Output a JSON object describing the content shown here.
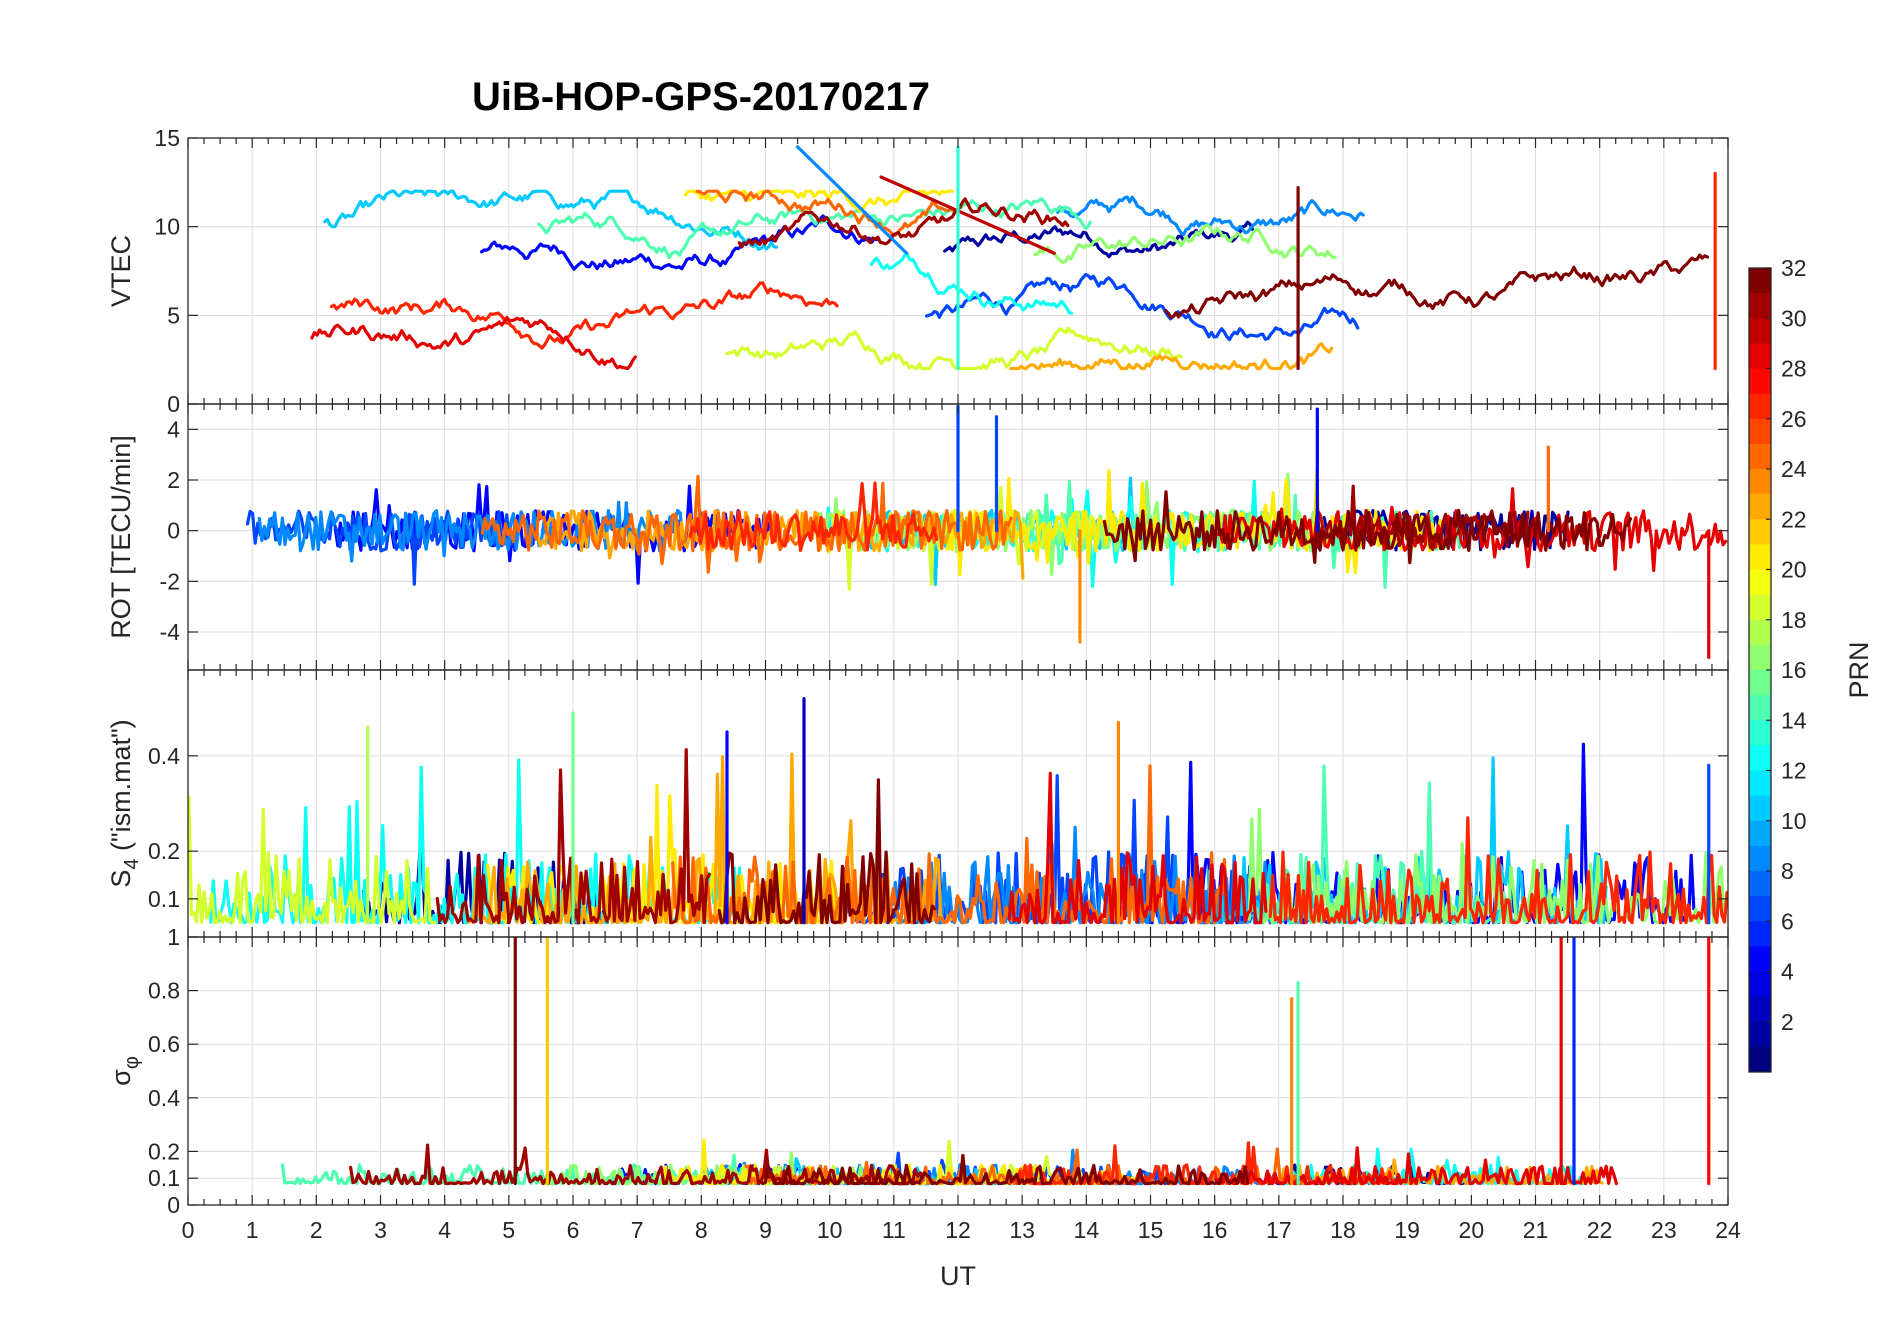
{
  "chart_data": {
    "title": "UiB-HOP-GPS-20170217",
    "type": "line",
    "xlabel": "UT",
    "xlim": [
      0,
      24
    ],
    "x_ticks": [
      0,
      1,
      2,
      3,
      4,
      5,
      6,
      7,
      8,
      9,
      10,
      11,
      12,
      13,
      14,
      15,
      16,
      17,
      18,
      19,
      20,
      21,
      22,
      23,
      24
    ],
    "x_tick_labels": [
      "0",
      "1",
      "2",
      "3",
      "4",
      "5",
      "6",
      "7",
      "8",
      "9",
      "10",
      "11",
      "12",
      "13",
      "14",
      "15",
      "16",
      "17",
      "18",
      "19",
      "20",
      "21",
      "22",
      "23",
      "24"
    ],
    "panels": [
      {
        "id": "vtec",
        "ylabel": "VTEC",
        "ylim": [
          0,
          15
        ],
        "y_ticks": [
          0,
          5,
          10,
          15
        ],
        "y_tick_labels": [
          "0",
          "5",
          "10",
          "15"
        ],
        "grid": true
      },
      {
        "id": "rot",
        "ylabel": "ROT [TECU/min]",
        "ylim": [
          -5.5,
          5
        ],
        "y_ticks": [
          -4,
          -2,
          0,
          2,
          4
        ],
        "y_tick_labels": [
          "-4",
          "-2",
          "0",
          "2",
          "4"
        ],
        "grid": true
      },
      {
        "id": "s4",
        "ylabel": "S4 (\"ism.mat\")",
        "ylabel_main": "S",
        "ylabel_sub": "4",
        "ylabel_rest": " (\"ism.mat\")",
        "ylim": [
          0.02,
          0.58
        ],
        "y_ticks": [
          0.1,
          0.2,
          0.4
        ],
        "y_tick_labels": [
          "0.1",
          "0.2",
          "0.4"
        ],
        "grid": true
      },
      {
        "id": "sigma_phi",
        "ylabel": "σφ",
        "ylabel_main": "σ",
        "ylabel_sub": "φ",
        "ylim": [
          0,
          1
        ],
        "y_ticks": [
          0,
          0.1,
          0.2,
          0.4,
          0.6,
          0.8,
          1
        ],
        "y_tick_labels": [
          "0",
          "0.1",
          "0.2",
          "0.4",
          "0.6",
          "0.8",
          "1"
        ],
        "grid": true
      }
    ],
    "colorbar": {
      "label": "PRN",
      "colormap": "jet",
      "range": [
        1,
        32
      ],
      "ticks": [
        2,
        4,
        6,
        8,
        10,
        12,
        14,
        16,
        18,
        20,
        22,
        24,
        26,
        28,
        30,
        32
      ],
      "tick_labels": [
        "2",
        "4",
        "6",
        "8",
        "10",
        "12",
        "14",
        "16",
        "18",
        "20",
        "22",
        "24",
        "26",
        "28",
        "30",
        "32"
      ]
    },
    "series_note_values": {
      "vtec_background_range": [
        2,
        12
      ],
      "rot_background_range": [
        -0.8,
        0.8
      ],
      "s4_background_range": [
        0.05,
        0.2
      ],
      "sigma_background_range": [
        0.08,
        0.15
      ]
    },
    "notable_events": [
      {
        "panel": "vtec",
        "prn": 9,
        "x_start": 9.5,
        "y_start": 14.5,
        "x_end": 11.2,
        "y_end": 8.5
      },
      {
        "panel": "vtec",
        "prn": 30,
        "x_start": 10.8,
        "y_start": 12.8,
        "x_end": 13.5,
        "y_end": 8.5
      },
      {
        "panel": "vtec",
        "prn": 14,
        "x": 12.0,
        "y": 14.5
      },
      {
        "panel": "vtec",
        "prn": 32,
        "x": 17.3,
        "y": 12.2
      },
      {
        "panel": "vtec",
        "prn": 27,
        "x": 23.8,
        "y": 13.0
      },
      {
        "panel": "rot",
        "prn": 7,
        "x": 12.0,
        "y": 4.9
      },
      {
        "panel": "rot",
        "prn": 7,
        "x": 12.6,
        "y": 4.5
      },
      {
        "panel": "rot",
        "prn": 5,
        "x": 17.6,
        "y": 4.8
      },
      {
        "panel": "rot",
        "prn": 24,
        "x": 13.9,
        "y": -4.4
      },
      {
        "panel": "rot",
        "prn": 29,
        "x": 23.7,
        "y": -5.0
      },
      {
        "panel": "rot",
        "prn": 25,
        "x": 21.2,
        "y": 3.3
      },
      {
        "panel": "s4",
        "prn": 3,
        "x": 9.6,
        "y": 0.52
      },
      {
        "panel": "s4",
        "prn": 16,
        "x": 6.0,
        "y": 0.49
      },
      {
        "panel": "s4",
        "prn": 18,
        "x": 2.8,
        "y": 0.46
      },
      {
        "panel": "s4",
        "prn": 24,
        "x": 14.5,
        "y": 0.47
      },
      {
        "panel": "s4",
        "prn": 5,
        "x": 8.4,
        "y": 0.45
      },
      {
        "panel": "s4",
        "prn": 7,
        "x": 23.7,
        "y": 0.38
      },
      {
        "panel": "sigma_phi",
        "prn": 32,
        "x": 5.1,
        "y": 1.0
      },
      {
        "panel": "sigma_phi",
        "prn": 22,
        "x": 5.6,
        "y": 1.0
      },
      {
        "panel": "sigma_phi",
        "prn": 29,
        "x": 21.4,
        "y": 1.0
      },
      {
        "panel": "sigma_phi",
        "prn": 6,
        "x": 21.6,
        "y": 1.0
      },
      {
        "panel": "sigma_phi",
        "prn": 28,
        "x": 23.7,
        "y": 1.0
      },
      {
        "panel": "sigma_phi",
        "prn": 15,
        "x": 17.3,
        "y": 0.83
      },
      {
        "panel": "sigma_phi",
        "prn": 24,
        "x": 17.2,
        "y": 0.77
      }
    ]
  }
}
